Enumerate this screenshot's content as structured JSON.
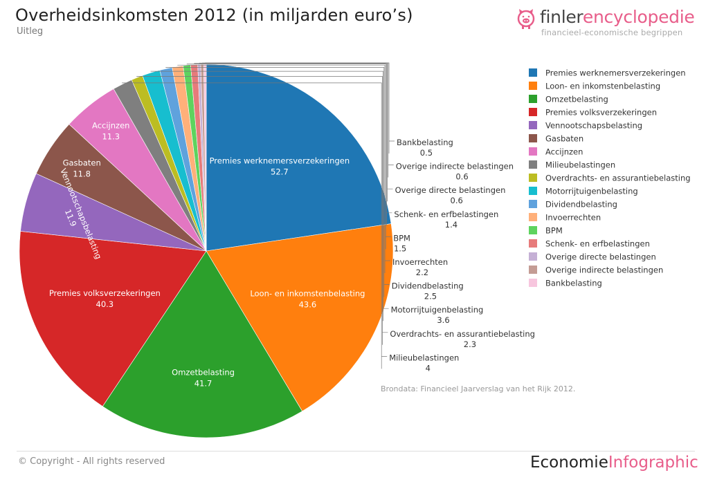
{
  "header": {
    "title": "Overheidsinkomsten 2012 (in miljarden euro’s)",
    "subtitle": "Uitleg"
  },
  "logo": {
    "brand_part1": "finler",
    "brand_part2": "encyclopedie",
    "tagline": "financieel-economische begrippen",
    "icon": "pig-icon"
  },
  "chart_data": {
    "type": "pie",
    "title": "Overheidsinkomsten 2012 (in miljarden euro’s)",
    "unit": "miljarden euro",
    "legend_position": "right",
    "slices": [
      {
        "label": "Premies werknemersverzekeringen",
        "value": 52.7,
        "display": "52.7",
        "color": "#1f77b4"
      },
      {
        "label": "Loon- en inkomstenbelasting",
        "value": 43.6,
        "display": "43.6",
        "color": "#ff7f0e"
      },
      {
        "label": "Omzetbelasting",
        "value": 41.7,
        "display": "41.7",
        "color": "#2ca02c"
      },
      {
        "label": "Premies volksverzekeringen",
        "value": 40.3,
        "display": "40.3",
        "color": "#d62728"
      },
      {
        "label": "Vennootschapsbelasting",
        "value": 11.9,
        "display": "11.9",
        "color": "#9467bd"
      },
      {
        "label": "Gasbaten",
        "value": 11.8,
        "display": "11.8",
        "color": "#8c564b"
      },
      {
        "label": "Accijnzen",
        "value": 11.3,
        "display": "11.3",
        "color": "#e377c2"
      },
      {
        "label": "Milieubelastingen",
        "value": 4,
        "display": "4",
        "color": "#7f7f7f"
      },
      {
        "label": "Overdrachts- en assurantiebelasting",
        "value": 2.3,
        "display": "2.3",
        "color": "#bcbd22"
      },
      {
        "label": "Motorrijtuigenbelasting",
        "value": 3.6,
        "display": "3.6",
        "color": "#17becf"
      },
      {
        "label": "Dividendbelasting",
        "value": 2.5,
        "display": "2.5",
        "color": "#5fa2dd"
      },
      {
        "label": "Invoerrechten",
        "value": 2.2,
        "display": "2.2",
        "color": "#ffb07a"
      },
      {
        "label": "BPM",
        "value": 1.5,
        "display": "1.5",
        "color": "#5ed35e"
      },
      {
        "label": "Schenk- en erfbelastingen",
        "value": 1.4,
        "display": "1.4",
        "color": "#e77b7b"
      },
      {
        "label": "Overige directe belastingen",
        "value": 0.6,
        "display": "0.6",
        "color": "#c5b0d5"
      },
      {
        "label": "Overige indirecte belastingen",
        "value": 0.6,
        "display": "0.6",
        "color": "#c49c94"
      },
      {
        "label": "Bankbelasting",
        "value": 0.5,
        "display": "0.5",
        "color": "#f7c6de"
      }
    ]
  },
  "source": "Brondata: Financieel Jaarverslag van het Rijk 2012.",
  "footer": {
    "copyright": "© Copyright - All rights reserved",
    "brand_part1": "Economie",
    "brand_part2": "Infographic"
  }
}
